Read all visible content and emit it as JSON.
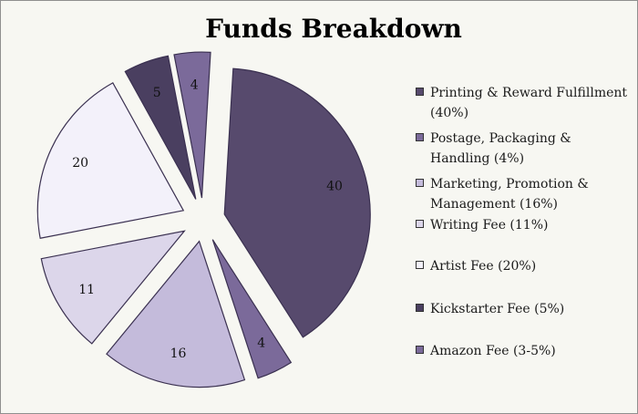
{
  "chart_data": {
    "type": "pie",
    "title": "Funds Breakdown",
    "slices": [
      {
        "label": "Printing & Reward Fulfillment (40%)",
        "value": 40,
        "data_label": "40",
        "color": "#574a6d"
      },
      {
        "label": "Postage, Packaging & Handling (4%)",
        "value": 4,
        "data_label": "4",
        "color": "#7b6a9a"
      },
      {
        "label": "Marketing, Promotion & Management (16%)",
        "value": 16,
        "data_label": "16",
        "color": "#c4bbdb"
      },
      {
        "label": "Writing Fee (11%)",
        "value": 11,
        "data_label": "11",
        "color": "#dcd6ea"
      },
      {
        "label": "Artist Fee (20%)",
        "value": 20,
        "data_label": "20",
        "color": "#f3f1fa"
      },
      {
        "label": "Kickstarter Fee (5%)",
        "value": 5,
        "data_label": "5",
        "color": "#4a3f60"
      },
      {
        "label": "Amazon Fee (3-5%)",
        "value": 4,
        "data_label": "4",
        "color": "#7b6a9a"
      }
    ],
    "legend_position": "right"
  }
}
